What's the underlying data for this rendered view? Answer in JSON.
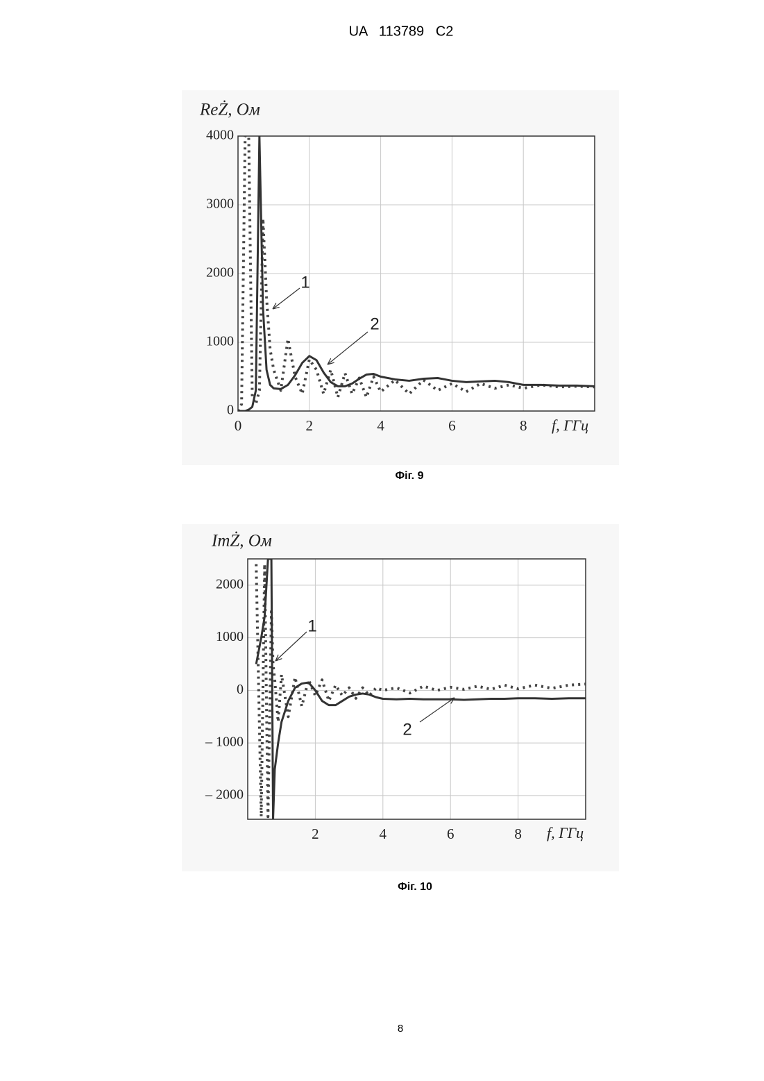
{
  "header": "UA   113789   C2",
  "page_number": "8",
  "chart_data": [
    {
      "type": "line",
      "caption": "Фіг. 9",
      "ylabel": "ReŻ, Ом",
      "xlabel": "f, ГГц",
      "xlim": [
        0,
        10
      ],
      "xticks": [
        0,
        2,
        4,
        6,
        8
      ],
      "ylim": [
        0,
        4000
      ],
      "yticks": [
        0,
        1000,
        2000,
        3000,
        4000
      ],
      "grid": true,
      "x": [
        0,
        0.1,
        0.2,
        0.3,
        0.4,
        0.5,
        0.6,
        0.7,
        0.8,
        0.9,
        1.0,
        1.2,
        1.4,
        1.6,
        1.8,
        2.0,
        2.2,
        2.4,
        2.6,
        2.8,
        3.0,
        3.2,
        3.4,
        3.6,
        3.8,
        4.0,
        4.4,
        4.8,
        5.2,
        5.6,
        6.0,
        6.4,
        6.8,
        7.2,
        7.6,
        8.0,
        8.5,
        9.0,
        9.5,
        10
      ],
      "series": [
        {
          "name": "1",
          "color": "#444444",
          "style": "dotted",
          "values": [
            0,
            100,
            4000,
            4000,
            200,
            100,
            300,
            2800,
            1650,
            900,
            600,
            300,
            1050,
            500,
            250,
            750,
            600,
            250,
            600,
            200,
            550,
            250,
            480,
            200,
            500,
            280,
            450,
            250,
            450,
            300,
            400,
            280,
            400,
            330,
            380,
            330,
            380,
            350,
            360,
            350
          ]
        },
        {
          "name": "2",
          "color": "#333333",
          "style": "solid",
          "values": [
            0,
            0,
            0,
            20,
            60,
            300,
            4000,
            1500,
            600,
            380,
            330,
            320,
            380,
            520,
            700,
            800,
            740,
            560,
            420,
            360,
            360,
            400,
            470,
            530,
            540,
            500,
            460,
            440,
            470,
            480,
            440,
            420,
            430,
            440,
            420,
            380,
            380,
            370,
            370,
            360
          ]
        }
      ]
    },
    {
      "type": "line",
      "caption": "Фіг. 10",
      "ylabel": "ImŻ, Ом",
      "xlabel": "f, ГГц",
      "xlim": [
        0,
        10
      ],
      "xticks": [
        2,
        4,
        6,
        8
      ],
      "ylim": [
        -2450,
        2500
      ],
      "yticks": [
        {
          "value": -2000,
          "label": "– 2000"
        },
        {
          "value": -1000,
          "label": "– 1000"
        },
        0,
        1000,
        2000
      ],
      "grid": true,
      "x": [
        0.25,
        0.4,
        0.5,
        0.6,
        0.7,
        0.75,
        0.8,
        0.9,
        1.0,
        1.2,
        1.4,
        1.6,
        1.8,
        2.0,
        2.2,
        2.4,
        2.6,
        2.8,
        3.0,
        3.2,
        3.4,
        3.6,
        3.8,
        4.0,
        4.4,
        4.8,
        5.2,
        5.6,
        6.0,
        6.4,
        6.8,
        7.2,
        7.6,
        8.0,
        8.5,
        9.0,
        9.5,
        10
      ],
      "series": [
        {
          "name": "1",
          "color": "#444444",
          "style": "dotted",
          "values": [
            2400,
            -2400,
            2400,
            -2400,
            1500,
            500,
            200,
            -600,
            300,
            -500,
            250,
            -300,
            200,
            -100,
            200,
            -200,
            100,
            -100,
            50,
            -150,
            50,
            -100,
            50,
            0,
            50,
            -50,
            80,
            0,
            60,
            20,
            80,
            20,
            100,
            30,
            100,
            40,
            100,
            120
          ]
        },
        {
          "name": "2",
          "color": "#333333",
          "style": "solid",
          "values": [
            500,
            1000,
            1400,
            2500,
            2500,
            -2450,
            -1500,
            -1000,
            -600,
            -200,
            50,
            130,
            150,
            0,
            -200,
            -280,
            -280,
            -200,
            -120,
            -80,
            -60,
            -80,
            -130,
            -160,
            -170,
            -160,
            -170,
            -170,
            -170,
            -180,
            -170,
            -160,
            -160,
            -150,
            -150,
            -160,
            -150,
            -150
          ]
        }
      ]
    }
  ]
}
